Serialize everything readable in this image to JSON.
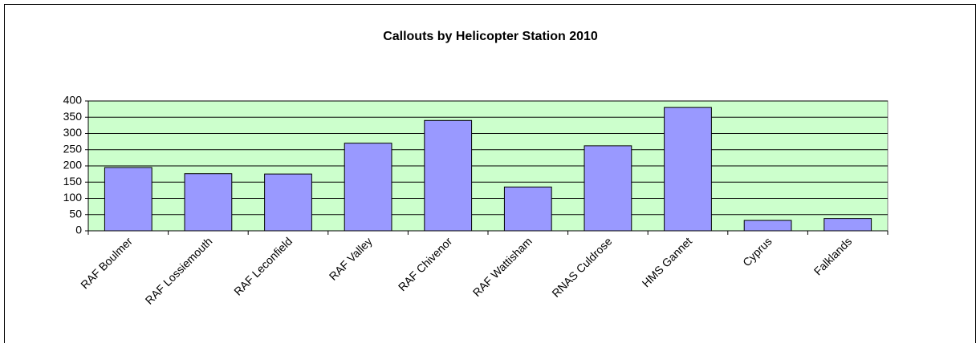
{
  "chart_data": {
    "type": "bar",
    "title": "Callouts by Helicopter Station 2010",
    "categories": [
      "RAF Boulmer",
      "RAF Lossiemouth",
      "RAF Leconfield",
      "RAF Valley",
      "RAF Chivenor",
      "RAF Wattisham",
      "RNAS Culdrose",
      "HMS Gannet",
      "Cyprus",
      "Falklands"
    ],
    "values": [
      195,
      176,
      175,
      270,
      340,
      135,
      262,
      380,
      32,
      38
    ],
    "color": "#9999ff",
    "plot_background": "#ccffcc",
    "ylim": [
      0,
      400
    ],
    "yticks": [
      0,
      50,
      100,
      150,
      200,
      250,
      300,
      350,
      400
    ],
    "grid": true
  }
}
